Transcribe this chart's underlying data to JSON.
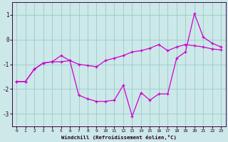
{
  "xlabel": "Windchill (Refroidissement éolien,°C)",
  "bg_color": "#cce8e8",
  "line_color": "#cc00cc",
  "grid_color": "#99cccc",
  "x_ticks": [
    0,
    1,
    2,
    3,
    4,
    5,
    6,
    7,
    8,
    9,
    10,
    11,
    12,
    13,
    14,
    15,
    16,
    17,
    18,
    19,
    20,
    21,
    22,
    23
  ],
  "xlim": [
    -0.5,
    23.5
  ],
  "ylim": [
    -3.5,
    1.5
  ],
  "yticks": [
    -3,
    -2,
    -1,
    0,
    1
  ],
  "line1_x": [
    0,
    1,
    2,
    3,
    4,
    5,
    6,
    7,
    8,
    9,
    10,
    11,
    12,
    13,
    14,
    15,
    16,
    17,
    18,
    19,
    20,
    21,
    22,
    23
  ],
  "line1_y": [
    -1.7,
    -1.7,
    -1.2,
    -0.95,
    -0.9,
    -0.65,
    -0.85,
    -2.25,
    -2.4,
    -2.5,
    -2.5,
    -2.45,
    -1.85,
    -3.1,
    -2.15,
    -2.45,
    -2.2,
    -2.2,
    -0.75,
    -0.5,
    1.05,
    0.1,
    -0.15,
    -0.3
  ],
  "line2_x": [
    0,
    1,
    2,
    3,
    4,
    5,
    6,
    7,
    8,
    9,
    10,
    11,
    12,
    13,
    14,
    15,
    16,
    17,
    18,
    19,
    20,
    21,
    22,
    23
  ],
  "line2_y": [
    -1.7,
    -1.7,
    -1.2,
    -0.95,
    -0.9,
    -0.9,
    -0.85,
    -1.0,
    -1.05,
    -1.1,
    -0.85,
    -0.75,
    -0.65,
    -0.5,
    -0.45,
    -0.35,
    -0.2,
    -0.45,
    -0.3,
    -0.2,
    -0.25,
    -0.3,
    -0.38,
    -0.42
  ]
}
